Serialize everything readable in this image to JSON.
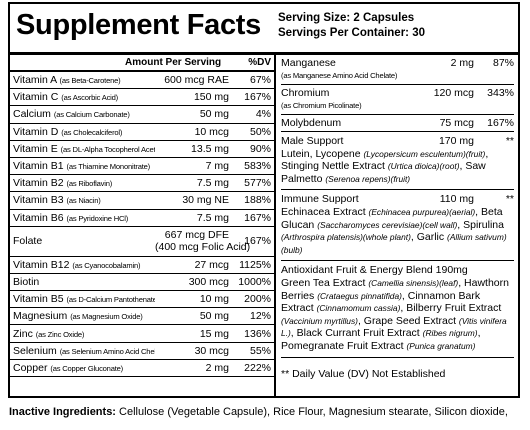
{
  "header": {
    "title": "Supplement Facts",
    "serving_size": "Serving Size: 2 Capsules",
    "servings_per_container": "Servings Per Container: 30"
  },
  "left_table": {
    "columns": [
      "Amount Per Serving",
      "%DV"
    ],
    "rows": [
      {
        "name": "Vitamin A",
        "qualifier": "(as Beta-Carotene)",
        "amount": "600 mcg RAE",
        "dv": "67%"
      },
      {
        "name": "Vitamin C",
        "qualifier": "(as Ascorbic Acid)",
        "amount": "150 mg",
        "dv": "167%"
      },
      {
        "name": "Calcium",
        "qualifier": "(as Calcium Carbonate)",
        "amount": "50 mg",
        "dv": "4%"
      },
      {
        "name": "Vitamin D",
        "qualifier": "(as Cholecalciferol)",
        "amount": "10 mcg",
        "dv": "50%"
      },
      {
        "name": "Vitamin E",
        "qualifier": "(as DL-Alpha Tocopherol Acetate)",
        "amount": "13.5 mg",
        "dv": "90%"
      },
      {
        "name": "Vitamin B1",
        "qualifier": "(as Thiamine Mononitrate)",
        "amount": "7 mg",
        "dv": "583%"
      },
      {
        "name": "Vitamin B2",
        "qualifier": "(as Riboflavin)",
        "amount": "7.5 mg",
        "dv": "577%"
      },
      {
        "name": "Vitamin B3",
        "qualifier": "(as Niacin)",
        "amount": "30 mg NE",
        "dv": "188%"
      },
      {
        "name": "Vitamin B6",
        "qualifier": "(as Pyridoxine HCl)",
        "amount": "7.5 mg",
        "dv": "167%"
      },
      {
        "name": "Folate",
        "amount": "667 mcg DFE",
        "amount_note": "(400 mcg Folic Acid)",
        "dv": "167%"
      },
      {
        "name": "Vitamin B12",
        "qualifier": "(as Cyanocobalamin)",
        "amount": "27 mcg",
        "dv": "1125%"
      },
      {
        "name": "Biotin",
        "amount": "300 mcg",
        "dv": "1000%"
      },
      {
        "name": "Vitamin B5",
        "qualifier": "(as D-Calcium Pantothenate)",
        "amount": "10 mg",
        "dv": "200%"
      },
      {
        "name": "Magnesium",
        "qualifier": "(as Magnesium Oxide)",
        "amount": "50 mg",
        "dv": "12%"
      },
      {
        "name": "Zinc",
        "qualifier": "(as Zinc Oxide)",
        "amount": "15 mg",
        "dv": "136%"
      },
      {
        "name": "Selenium",
        "qualifier": "(as Selenium Amino Acid Chelate)",
        "amount": "30 mcg",
        "dv": "55%"
      },
      {
        "name": "Copper",
        "qualifier": "(as Copper Gluconate)",
        "amount": "2 mg",
        "dv": "222%"
      }
    ]
  },
  "right_table": {
    "rows": [
      {
        "name": "Manganese",
        "qualifier": "(as Manganese Amino Acid Chelate)",
        "amount": "2 mg",
        "dv": "87%"
      },
      {
        "name": "Chromium",
        "qualifier": "(as Chromium Picolinate)",
        "amount": "120 mcg",
        "dv": "343%"
      },
      {
        "name": "Molybdenum",
        "amount": "75 mcg",
        "dv": "167%"
      }
    ],
    "blends": [
      {
        "name": "Male Support",
        "amount": "170 mg",
        "dv": "**",
        "ingredients": [
          "Lutein, Lycopene ",
          {
            "text": "(Lycopersicum esculentum)(fruit)",
            "italic": true
          },
          ", Stinging Nettle Extract ",
          {
            "text": "(Urtica dioica)(root)",
            "italic": true
          },
          ", Saw Palmetto ",
          {
            "text": "(Serenoa repens)(fruit)",
            "italic": true
          }
        ]
      },
      {
        "name": "Immune Support",
        "amount": "110 mg",
        "dv": "**",
        "ingredients": [
          "Echinacea Extract ",
          {
            "text": "(Echinacea purpurea)(aerial)",
            "italic": true
          },
          ", Beta Glucan ",
          {
            "text": "(Saccharomyces cerevisiae)(cell wall)",
            "italic": true
          },
          ", Spirulina ",
          {
            "text": "(Arthrospira platensis)(whole plant)",
            "italic": true
          },
          ", Garlic ",
          {
            "text": "(Allium sativum)(bulb)",
            "italic": true
          }
        ]
      },
      {
        "name": "Antioxidant Fruit & Energy Blend 190mg",
        "ingredients": [
          "Green Tea Extract ",
          {
            "text": "(Camellia sinensis)(leaf)",
            "italic": true
          },
          ", Hawthorn Berries ",
          {
            "text": "(Crataegus pinnatifida)",
            "italic": true
          },
          ", Cinnamon Bark Extract ",
          {
            "text": "(Cinnamomum cassia)",
            "italic": true
          },
          ", Bilberry Fruit Extract ",
          {
            "text": "(Vaccinium myrtillus)",
            "italic": true
          },
          ", Grape Seed Extract ",
          {
            "text": "(Vitis vinifera L.)",
            "italic": true
          },
          ", Black Currant Fruit Extract ",
          {
            "text": "(Ribes nigrum)",
            "italic": true
          },
          ", Pomegranate Fruit Extract ",
          {
            "text": "(Punica granatum)",
            "italic": true
          }
        ]
      }
    ],
    "footnote": "** Daily Value (DV) Not Established"
  },
  "inactive_ingredients": {
    "label": "Inactive Ingredients:",
    "text": " Cellulose (Vegetable Capsule), Rice Flour, Magnesium stearate, Silicon dioxide,"
  }
}
